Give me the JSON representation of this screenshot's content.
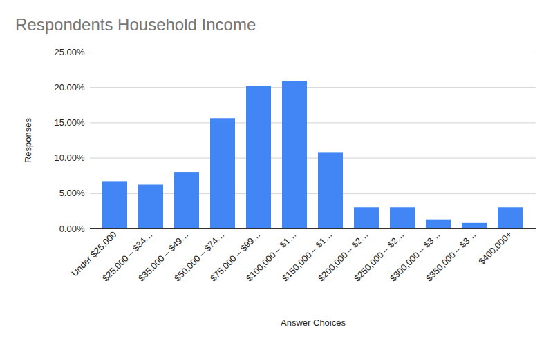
{
  "chart_data": {
    "type": "bar",
    "title": "Respondents Household Income",
    "x_label": "Answer Choices",
    "y_label": "Responses",
    "categories": [
      "Under $25,000",
      "$25,000 – $34…",
      "$35,000 – $49…",
      "$50,000 – $74…",
      "$75,000 – $99…",
      "$100,000 – $1…",
      "$150,000 – $1…",
      "$200,000 – $2…",
      "$250,000 – $2…",
      "$300,000 – $3…",
      "$350,000 – $3…",
      "$400,000+"
    ],
    "values": [
      6.7,
      6.2,
      8.0,
      15.6,
      20.2,
      20.9,
      10.8,
      3.0,
      3.0,
      1.3,
      0.8,
      3.0
    ],
    "color": "#4285f4",
    "ylim": [
      0,
      25
    ],
    "yticks": [
      {
        "value": 0,
        "label": "0.00%"
      },
      {
        "value": 5,
        "label": "5.00%"
      },
      {
        "value": 10,
        "label": "10.00%"
      },
      {
        "value": 15,
        "label": "15.00%"
      },
      {
        "value": 20,
        "label": "20.00%"
      },
      {
        "value": 25,
        "label": "25.00%"
      }
    ],
    "grid": true
  }
}
